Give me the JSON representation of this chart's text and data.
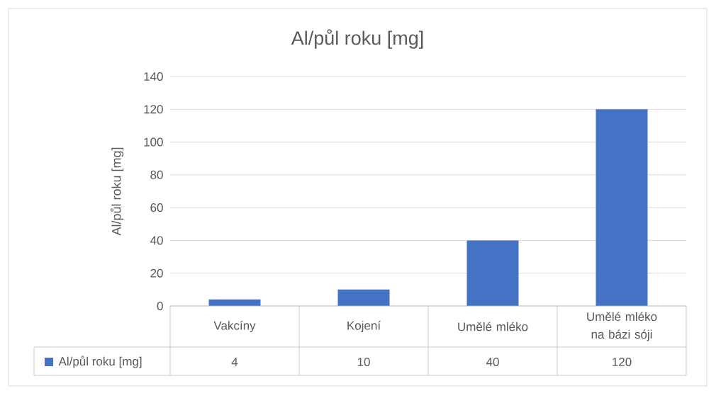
{
  "chart_data": {
    "type": "bar",
    "title": "Al/půl roku [mg]",
    "ylabel": "Al/půl roku [mg]",
    "categories": [
      "Vakcíny",
      "Kojení",
      "Umělé mléko",
      "Umělé mléko na bázi sóji"
    ],
    "series": [
      {
        "name": "Al/půl roku [mg]",
        "color": "#4472c4",
        "values": [
          4,
          10,
          40,
          120
        ]
      }
    ],
    "ylim": [
      0,
      140
    ],
    "yticks": [
      0,
      20,
      40,
      60,
      80,
      100,
      120,
      140
    ],
    "grid": "y",
    "legend": "bottom",
    "data_labels": true
  }
}
